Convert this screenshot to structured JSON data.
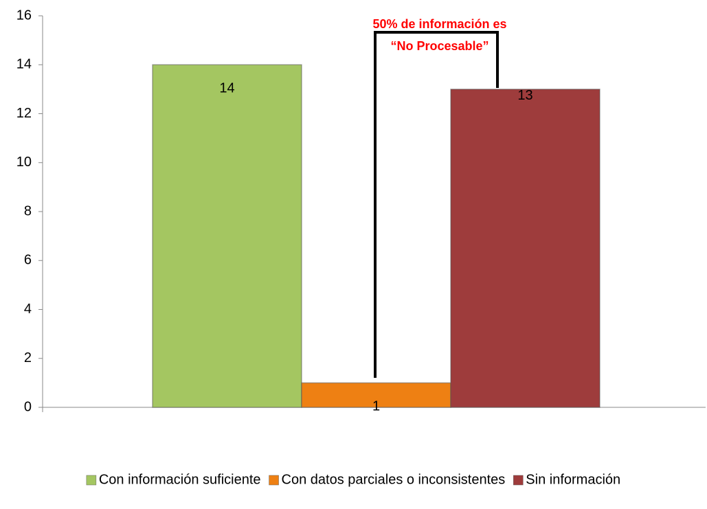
{
  "chart_data": {
    "type": "bar",
    "categories": [
      null
    ],
    "series": [
      {
        "name": "Con información suficiente",
        "color": "#a4c661",
        "values": [
          14
        ]
      },
      {
        "name": "Con datos parciales o inconsistentes",
        "color": "#ee8013",
        "values": [
          1
        ]
      },
      {
        "name": "Sin información",
        "color": "#9e3c3c",
        "values": [
          13
        ]
      }
    ],
    "ylim": [
      0,
      16
    ],
    "yticks": [
      0,
      2,
      4,
      6,
      8,
      10,
      12,
      14,
      16
    ],
    "annotation": [
      "50% de información es",
      "“No Procesable”"
    ],
    "legend": "bottom"
  }
}
